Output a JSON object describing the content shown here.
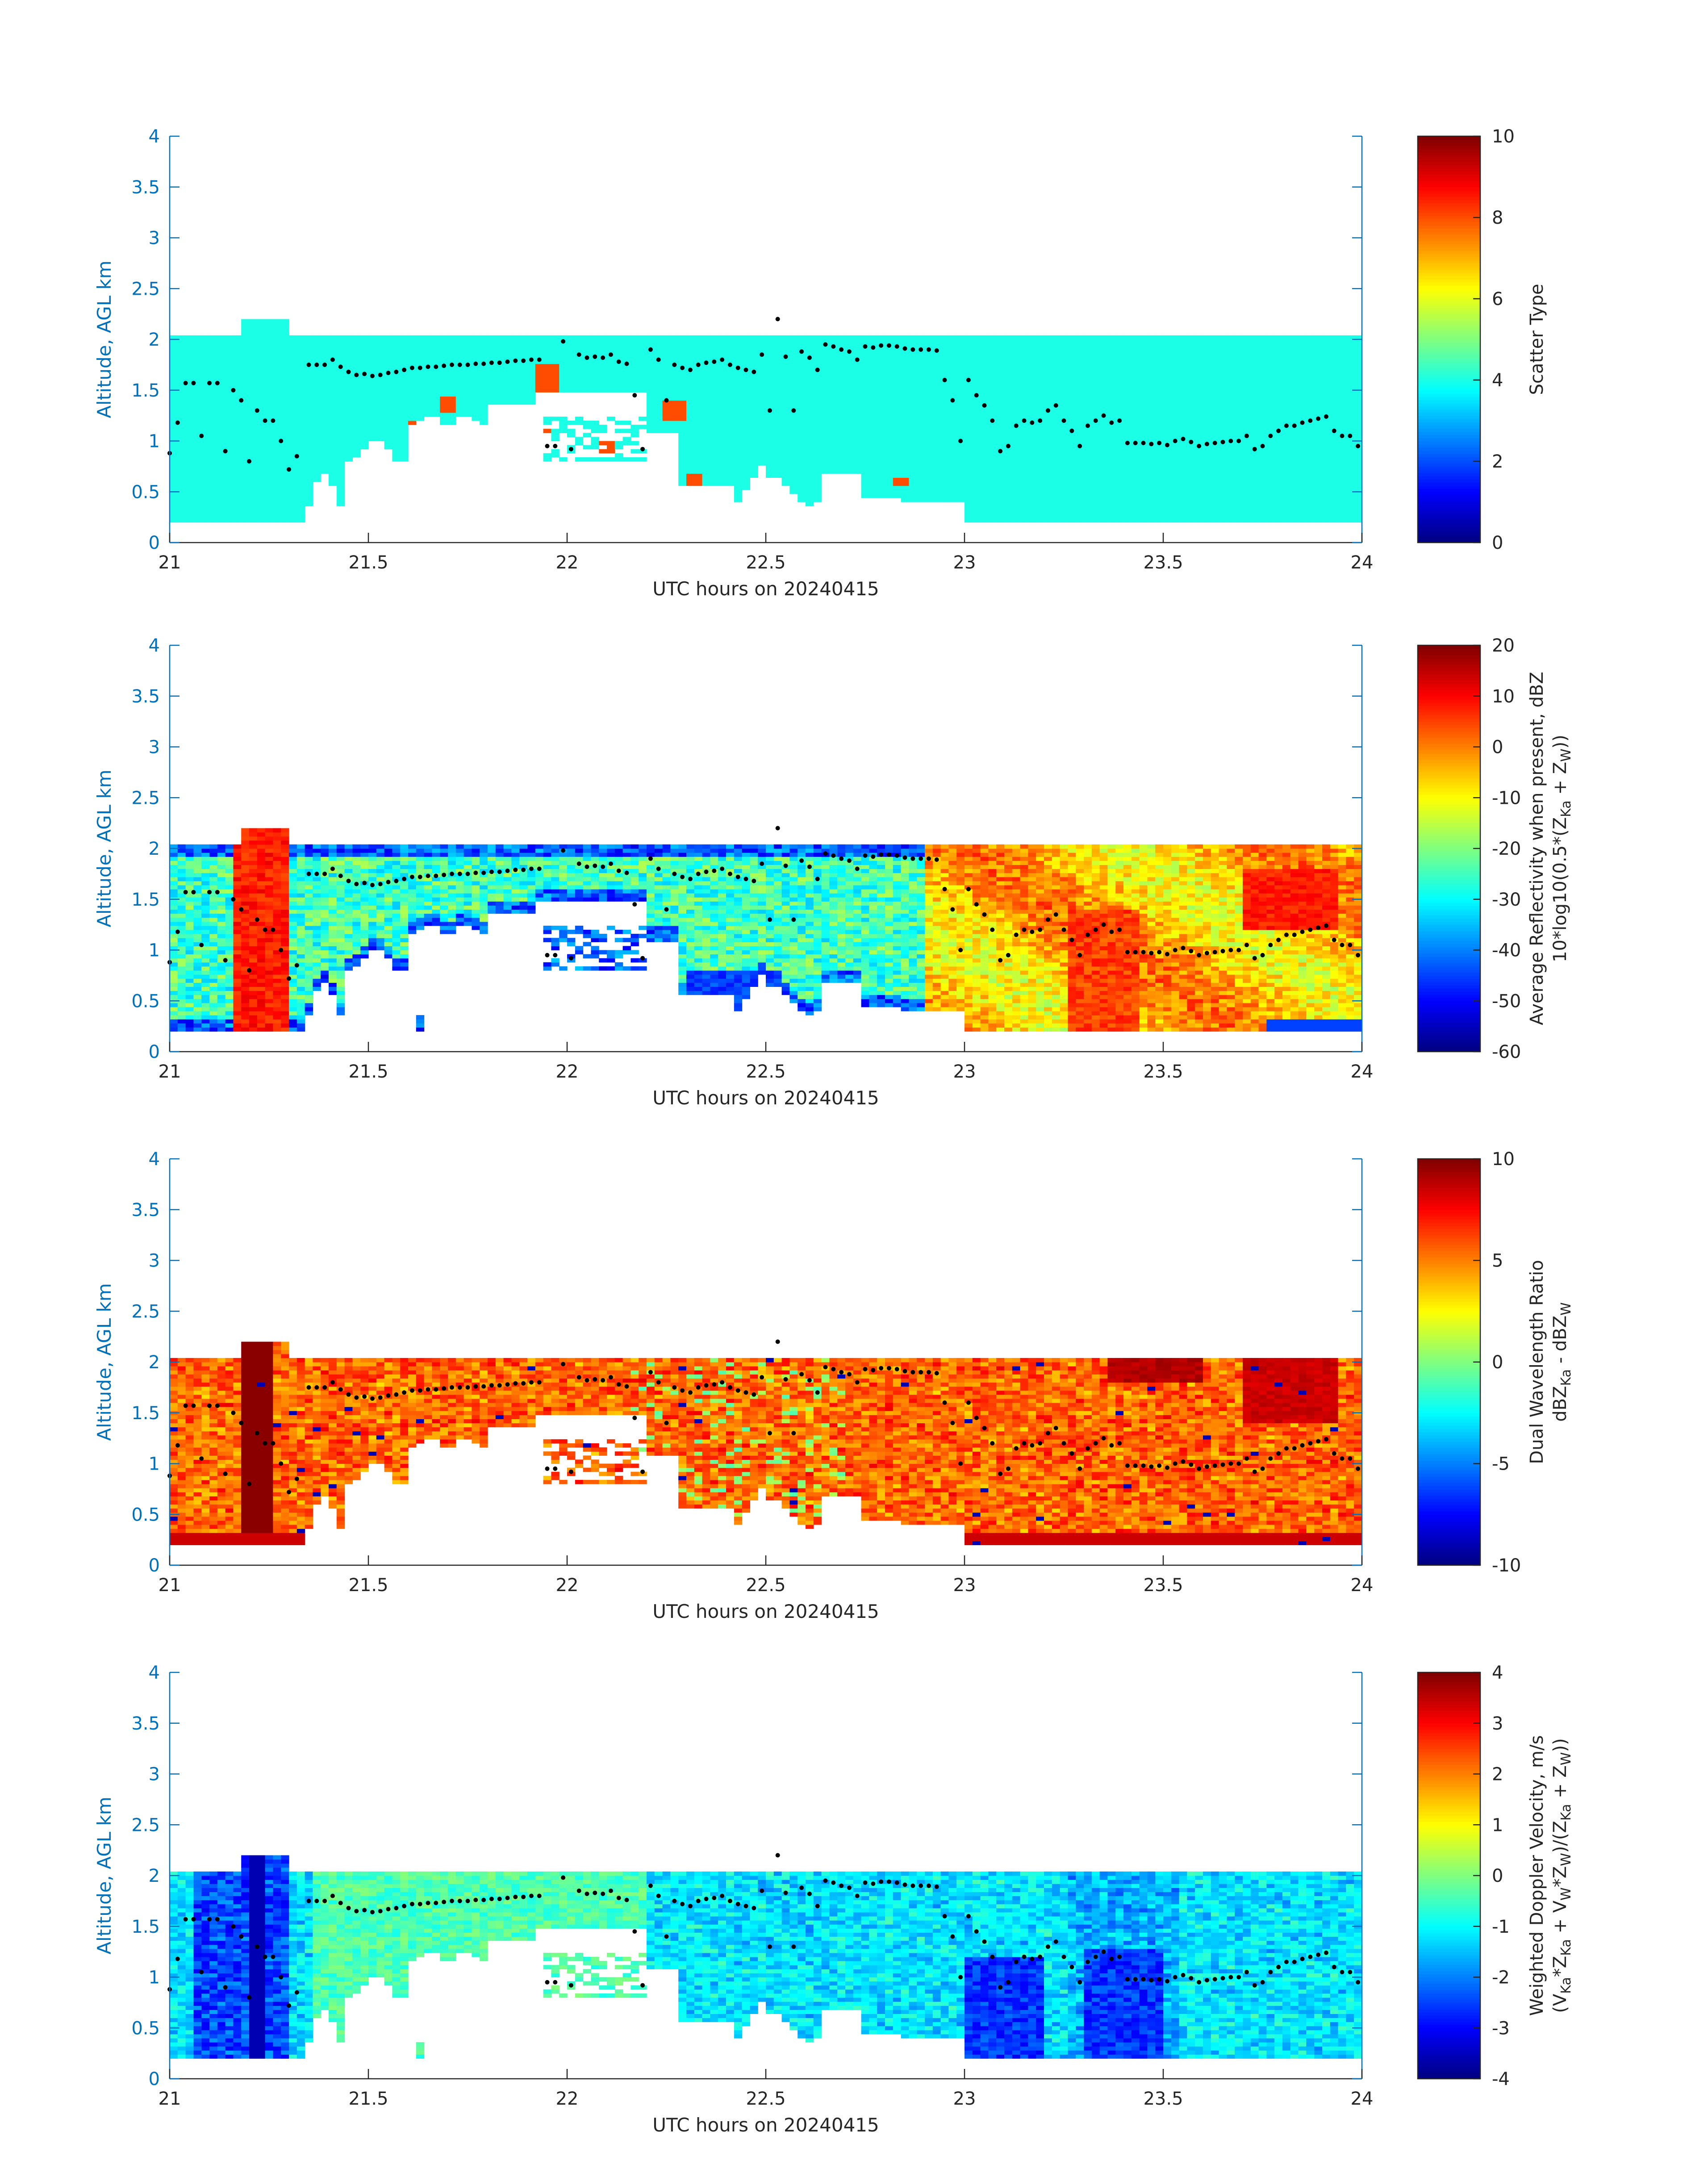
{
  "figure": {
    "colors": {
      "axis": "#0072BD",
      "text": "#262626",
      "marker": "#000000"
    },
    "colormap": "jet"
  },
  "chart_data": [
    {
      "type": "heatmap",
      "id": "scatter_type",
      "xlabel": "UTC hours on 20240415",
      "ylabel": "Altitude, AGL km",
      "xlim": [
        21,
        24
      ],
      "ylim": [
        0,
        4
      ],
      "xticks": [
        "21",
        "21.5",
        "22",
        "22.5",
        "23",
        "23.5",
        "24"
      ],
      "yticks": [
        "0",
        "0.5",
        "1",
        "1.5",
        "2",
        "2.5",
        "3",
        "3.5",
        "4"
      ],
      "colorbar": {
        "label": "Scatter Type",
        "ticks": [
          "0",
          "2",
          "4",
          "6",
          "8",
          "10"
        ],
        "min": 0,
        "max": 10
      },
      "description": "Echo mostly scatter type ~4 (cyan) from 0.2 to 2.05 km; isolated type ~8 cells near 21.65, 21.7, 21.95, 22.1, 22.27, 22.35 h",
      "dominant_value": 4,
      "secondary_value": 8
    },
    {
      "type": "heatmap",
      "id": "reflectivity",
      "xlabel": "UTC hours on 20240415",
      "ylabel": "Altitude, AGL km",
      "xlim": [
        21,
        24
      ],
      "ylim": [
        0,
        4
      ],
      "xticks": [
        "21",
        "21.5",
        "22",
        "22.5",
        "23",
        "23.5",
        "24"
      ],
      "yticks": [
        "0",
        "0.5",
        "1",
        "1.5",
        "2",
        "2.5",
        "3",
        "3.5",
        "4"
      ],
      "colorbar": {
        "label_line1": "Average Reflectivity when present, dBZ",
        "label_line2": "10*log10(0.5*(Z",
        "label_sub1": "Ka",
        "label_mid": " + Z",
        "label_sub2": "W",
        "label_end": "))",
        "ticks": [
          "-60",
          "-50",
          "-40",
          "-30",
          "-20",
          "-10",
          "0",
          "10",
          "20"
        ],
        "min": -60,
        "max": 20
      },
      "range_dbz": [
        -50,
        15
      ]
    },
    {
      "type": "heatmap",
      "id": "dwr",
      "xlabel": "UTC hours on 20240415",
      "ylabel": "Altitude, AGL km",
      "xlim": [
        21,
        24
      ],
      "ylim": [
        0,
        4
      ],
      "xticks": [
        "21",
        "21.5",
        "22",
        "22.5",
        "23",
        "23.5",
        "24"
      ],
      "yticks": [
        "0",
        "0.5",
        "1",
        "1.5",
        "2",
        "2.5",
        "3",
        "3.5",
        "4"
      ],
      "colorbar": {
        "label_line1": "Dual Wavelength Ratio",
        "label_a": "dBZ",
        "label_sub1": "Ka",
        "label_b": " - dBZ",
        "label_sub2": "W",
        "ticks": [
          "-10",
          "-5",
          "0",
          "5",
          "10"
        ],
        "min": -10,
        "max": 10
      },
      "range": [
        2,
        10
      ]
    },
    {
      "type": "heatmap",
      "id": "doppler",
      "xlabel": "UTC hours on 20240415",
      "ylabel": "Altitude, AGL km",
      "xlim": [
        21,
        24
      ],
      "ylim": [
        0,
        4
      ],
      "xticks": [
        "21",
        "21.5",
        "22",
        "22.5",
        "23",
        "23.5",
        "24"
      ],
      "yticks": [
        "0",
        "0.5",
        "1",
        "1.5",
        "2",
        "2.5",
        "3",
        "3.5",
        "4"
      ],
      "colorbar": {
        "label_line1": "Weighted Doppler Velocity, m/s",
        "ticks": [
          "-4",
          "-3",
          "-2",
          "-1",
          "0",
          "1",
          "2",
          "3",
          "4"
        ],
        "min": -4,
        "max": 4
      },
      "range_ms": [
        -3.8,
        1.5
      ]
    }
  ],
  "overlay_markers": {
    "description": "Black dots (same trace on all four panels): layer height in km vs UTC hour",
    "x": [
      21.0,
      21.02,
      21.04,
      21.06,
      21.08,
      21.1,
      21.12,
      21.14,
      21.16,
      21.18,
      21.2,
      21.22,
      21.24,
      21.26,
      21.28,
      21.3,
      21.32,
      21.35,
      21.37,
      21.39,
      21.41,
      21.43,
      21.45,
      21.47,
      21.49,
      21.51,
      21.53,
      21.55,
      21.57,
      21.59,
      21.61,
      21.63,
      21.65,
      21.67,
      21.69,
      21.71,
      21.73,
      21.75,
      21.77,
      21.79,
      21.81,
      21.83,
      21.85,
      21.87,
      21.89,
      21.91,
      21.93,
      21.95,
      21.97,
      21.99,
      22.01,
      22.03,
      22.05,
      22.07,
      22.09,
      22.11,
      22.13,
      22.15,
      22.17,
      22.19,
      22.21,
      22.23,
      22.25,
      22.27,
      22.29,
      22.31,
      22.33,
      22.35,
      22.37,
      22.39,
      22.41,
      22.43,
      22.45,
      22.47,
      22.49,
      22.51,
      22.53,
      22.55,
      22.57,
      22.59,
      22.61,
      22.63,
      22.65,
      22.67,
      22.69,
      22.71,
      22.73,
      22.75,
      22.77,
      22.79,
      22.81,
      22.83,
      22.85,
      22.87,
      22.89,
      22.91,
      22.93,
      22.95,
      22.97,
      22.99,
      23.01,
      23.03,
      23.05,
      23.07,
      23.09,
      23.11,
      23.13,
      23.15,
      23.17,
      23.19,
      23.21,
      23.23,
      23.25,
      23.27,
      23.29,
      23.31,
      23.33,
      23.35,
      23.37,
      23.39,
      23.41,
      23.43,
      23.45,
      23.47,
      23.49,
      23.51,
      23.53,
      23.55,
      23.57,
      23.59,
      23.61,
      23.63,
      23.65,
      23.67,
      23.69,
      23.71,
      23.73,
      23.75,
      23.77,
      23.79,
      23.81,
      23.83,
      23.85,
      23.87,
      23.89,
      23.91,
      23.93,
      23.95,
      23.97,
      23.99
    ],
    "y": [
      0.88,
      1.18,
      1.57,
      1.57,
      1.05,
      1.57,
      1.57,
      0.9,
      1.5,
      1.4,
      0.8,
      1.3,
      1.2,
      1.2,
      1.0,
      0.72,
      0.85,
      1.75,
      1.75,
      1.75,
      1.8,
      1.73,
      1.68,
      1.65,
      1.66,
      1.64,
      1.65,
      1.67,
      1.68,
      1.7,
      1.72,
      1.72,
      1.73,
      1.73,
      1.74,
      1.75,
      1.75,
      1.75,
      1.76,
      1.76,
      1.77,
      1.77,
      1.78,
      1.79,
      1.79,
      1.8,
      1.8,
      0.95,
      0.95,
      1.98,
      0.92,
      1.85,
      1.82,
      1.83,
      1.82,
      1.85,
      1.78,
      1.76,
      1.45,
      0.92,
      1.9,
      1.8,
      1.4,
      1.75,
      1.72,
      1.7,
      1.75,
      1.77,
      1.78,
      1.8,
      1.75,
      1.72,
      1.7,
      1.68,
      1.85,
      1.3,
      2.2,
      1.83,
      1.3,
      1.88,
      1.82,
      1.7,
      1.95,
      1.93,
      1.9,
      1.88,
      1.8,
      1.93,
      1.92,
      1.94,
      1.94,
      1.93,
      1.91,
      1.9,
      1.9,
      1.9,
      1.89,
      1.6,
      1.4,
      1.0,
      1.6,
      1.45,
      1.35,
      1.2,
      0.9,
      0.95,
      1.15,
      1.2,
      1.18,
      1.2,
      1.3,
      1.35,
      1.2,
      1.1,
      0.95,
      1.15,
      1.2,
      1.25,
      1.18,
      1.2,
      0.98,
      0.98,
      0.98,
      0.97,
      0.98,
      0.96,
      1.0,
      1.02,
      0.99,
      0.95,
      0.97,
      0.98,
      0.99,
      1.0,
      1.0,
      1.05,
      0.92,
      0.95,
      1.05,
      1.1,
      1.15,
      1.15,
      1.18,
      1.2,
      1.22,
      1.24,
      1.1,
      1.05,
      1.05,
      0.95
    ]
  }
}
